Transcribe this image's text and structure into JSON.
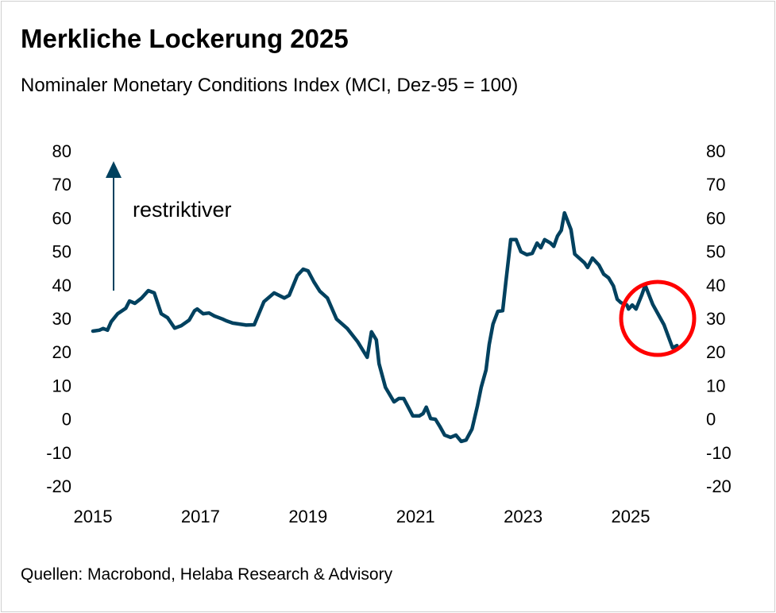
{
  "title": "Merkliche Lockerung 2025",
  "subtitle": "Nominaler Monetary Conditions Index (MCI, Dez-95 = 100)",
  "source": "Quellen: Macrobond, Helaba Research & Advisory",
  "colors": {
    "line": "#00415f",
    "highlight": "#ff0000",
    "arrow": "#00415f"
  },
  "chart_data": {
    "type": "line",
    "title": "Merkliche Lockerung 2025",
    "subtitle": "Nominaler Monetary Conditions Index (MCI, Dez-95 = 100)",
    "xlabel": "",
    "ylabel": "",
    "xlim": [
      2015,
      2026.1
    ],
    "ylim": [
      -20,
      80
    ],
    "x_ticks": [
      "2015",
      "2017",
      "2019",
      "2021",
      "2023",
      "2025"
    ],
    "x_tick_values": [
      2015,
      2017,
      2019,
      2021,
      2023,
      2025
    ],
    "y_ticks": [
      "80",
      "70",
      "60",
      "50",
      "40",
      "30",
      "20",
      "10",
      "0",
      "-10",
      "-20"
    ],
    "y_tick_values": [
      80,
      70,
      60,
      50,
      40,
      30,
      20,
      10,
      0,
      -10,
      -20
    ],
    "grid": false,
    "legend": "none",
    "annotation": {
      "text": "restriktiver",
      "arrow": "up",
      "highlight": "circle around 2025 decline"
    },
    "series": [
      {
        "name": "MCI",
        "x": [
          2015.0,
          2015.12,
          2015.19,
          2015.27,
          2015.34,
          2015.46,
          2015.61,
          2015.68,
          2015.78,
          2015.9,
          2016.03,
          2016.14,
          2016.27,
          2016.39,
          2016.52,
          2016.64,
          2016.79,
          2016.89,
          2016.94,
          2017.05,
          2017.16,
          2017.26,
          2017.41,
          2017.48,
          2017.6,
          2017.85,
          2018.0,
          2018.18,
          2018.37,
          2018.56,
          2018.65,
          2018.8,
          2018.91,
          2019.0,
          2019.11,
          2019.22,
          2019.36,
          2019.53,
          2019.73,
          2019.92,
          2020.1,
          2020.18,
          2020.27,
          2020.32,
          2020.44,
          2020.6,
          2020.69,
          2020.78,
          2020.95,
          2021.07,
          2021.14,
          2021.2,
          2021.28,
          2021.37,
          2021.45,
          2021.54,
          2021.65,
          2021.75,
          2021.85,
          2021.94,
          2022.05,
          2022.15,
          2022.22,
          2022.31,
          2022.37,
          2022.44,
          2022.53,
          2022.62,
          2022.68,
          2022.77,
          2022.87,
          2022.96,
          2023.07,
          2023.17,
          2023.26,
          2023.33,
          2023.4,
          2023.51,
          2023.57,
          2023.64,
          2023.71,
          2023.77,
          2023.89,
          2023.96,
          2024.14,
          2024.2,
          2024.29,
          2024.41,
          2024.5,
          2024.59,
          2024.68,
          2024.75,
          2024.82,
          2024.93,
          2024.96,
          2025.03,
          2025.1,
          2025.21,
          2025.27,
          2025.41,
          2025.62,
          2025.78,
          2025.86
        ],
        "values": [
          26.2,
          26.5,
          27.0,
          26.5,
          29.0,
          31.4,
          33.0,
          35.2,
          34.5,
          36.0,
          38.3,
          37.6,
          31.4,
          30.2,
          27.1,
          27.8,
          29.5,
          32.3,
          32.8,
          31.4,
          31.6,
          30.7,
          29.8,
          29.3,
          28.6,
          28.0,
          28.1,
          35.0,
          37.6,
          36.1,
          36.9,
          42.8,
          44.7,
          44.2,
          40.9,
          38.1,
          36.1,
          29.8,
          27.0,
          23.1,
          18.4,
          26.0,
          23.6,
          16.5,
          9.4,
          5.1,
          6.1,
          6.1,
          0.9,
          0.9,
          1.6,
          3.5,
          0.1,
          -0.1,
          -2.2,
          -4.8,
          -5.5,
          -4.8,
          -6.7,
          -6.3,
          -3.0,
          3.9,
          9.4,
          14.6,
          22.2,
          28.3,
          32.1,
          32.3,
          40.9,
          53.5,
          53.5,
          49.9,
          49.0,
          49.4,
          52.5,
          51.1,
          53.5,
          52.5,
          51.5,
          54.6,
          56.3,
          61.5,
          56.5,
          49.2,
          46.6,
          45.2,
          48.0,
          45.9,
          43.2,
          42.1,
          39.7,
          35.7,
          34.7,
          34.0,
          32.8,
          34.0,
          32.8,
          37.1,
          39.9,
          34.2,
          28.1,
          21.2,
          21.9
        ]
      }
    ]
  }
}
